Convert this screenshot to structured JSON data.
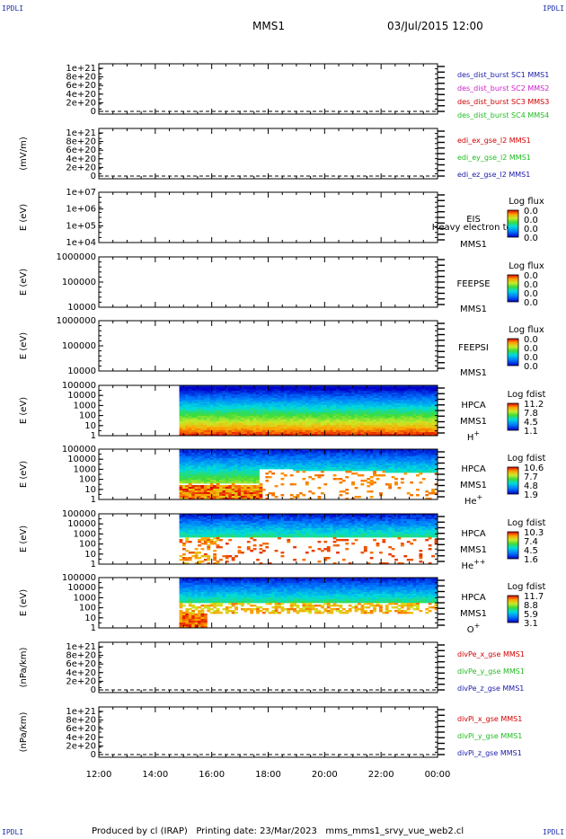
{
  "corners": {
    "tl": "IPDLI",
    "tr": "IPDLI",
    "bl": "IPDLI",
    "br": "IPDLI"
  },
  "header": {
    "spacecraft": "MMS1",
    "datetime": "03/Jul/2015 12:00"
  },
  "footer": {
    "text": "Produced by cl (IRAP)   Printing date: 23/Mar/2023   mms_mms1_srvy_vue_web2.cl"
  },
  "colors": {
    "red": "#d40000",
    "green": "#22bb22",
    "blue": "#1a1aaa",
    "magenta": "#cc22cc",
    "axis": "#000000"
  },
  "chart_data": {
    "type": "heatmap",
    "x_axis": {
      "ticks": [
        "12:00",
        "14:00",
        "16:00",
        "18:00",
        "20:00",
        "22:00",
        "00:00"
      ],
      "range_hours": [
        12,
        24
      ]
    },
    "panels": [
      {
        "kind": "line",
        "ylabel": "",
        "ticks": [
          "1e+21",
          "8e+20",
          "6e+20",
          "4e+20",
          "2e+20",
          "0"
        ],
        "legend": [
          {
            "text": "des_dist_burst SC1 MMS1",
            "color": "#1a1aaa"
          },
          {
            "text": "des_dist_burst SC2 MMS2",
            "color": "#cc22cc"
          },
          {
            "text": "des_dist_burst SC3 MMS3",
            "color": "#d40000"
          },
          {
            "text": "des_dist_burst SC4 MMS4",
            "color": "#22bb22"
          }
        ]
      },
      {
        "kind": "line",
        "ylabel": "(mV/m)",
        "ticks": [
          "1e+21",
          "8e+20",
          "6e+20",
          "4e+20",
          "2e+20",
          "0"
        ],
        "legend": [
          {
            "text": "edi_ex_gse_l2 MMS1",
            "color": "#d40000"
          },
          {
            "text": "edi_ey_gse_l2 MMS1",
            "color": "#22bb22"
          },
          {
            "text": "edi_ez_gse_l2 MMS1",
            "color": "#1a1aaa"
          }
        ]
      },
      {
        "kind": "spec",
        "ylabel": "E (eV)",
        "ticks": [
          "1e+07",
          "1e+06",
          "1e+05",
          "1e+04"
        ],
        "right_labels": [
          "EIS",
          "MMS1"
        ],
        "overlay": "Heavy electron tof",
        "cbar": {
          "title": "Log flux",
          "values": [
            "0.0",
            "0.0",
            "0.0",
            "0.0"
          ]
        },
        "coverage": null
      },
      {
        "kind": "spec",
        "ylabel": "E (eV)",
        "ticks": [
          "1000000",
          "100000",
          "10000"
        ],
        "right_labels": [
          "FEEPSE",
          "MMS1"
        ],
        "cbar": {
          "title": "Log flux",
          "values": [
            "0.0",
            "0.0",
            "0.0",
            "0.0"
          ]
        },
        "coverage": null
      },
      {
        "kind": "spec",
        "ylabel": "E (eV)",
        "ticks": [
          "1000000",
          "100000",
          "10000"
        ],
        "right_labels": [
          "FEEPSI",
          "MMS1"
        ],
        "cbar": {
          "title": "Log flux",
          "values": [
            "0.0",
            "0.0",
            "0.0",
            "0.0"
          ]
        },
        "coverage": null
      },
      {
        "kind": "spec",
        "ylabel": "E (eV)",
        "ticks": [
          "100000",
          "10000",
          "1000",
          "100",
          "10",
          "1"
        ],
        "right_labels": [
          "HPCA",
          "MMS1",
          "H+"
        ],
        "cbar": {
          "title": "Log fdist",
          "values": [
            "11.2",
            "7.8",
            "4.5",
            "1.1"
          ]
        },
        "coverage": {
          "start_hour": 14.85,
          "end_hour": 24,
          "profile": "proton"
        }
      },
      {
        "kind": "spec",
        "ylabel": "E (eV)",
        "ticks": [
          "100000",
          "10000",
          "1000",
          "100",
          "10",
          "1"
        ],
        "right_labels": [
          "HPCA",
          "MMS1",
          "He+"
        ],
        "cbar": {
          "title": "Log fdist",
          "values": [
            "10.6",
            "7.7",
            "4.8",
            "1.9"
          ]
        },
        "coverage": {
          "start_hour": 14.85,
          "end_hour": 24,
          "profile": "heplus"
        }
      },
      {
        "kind": "spec",
        "ylabel": "E (eV)",
        "ticks": [
          "100000",
          "10000",
          "1000",
          "100",
          "10",
          "1"
        ],
        "right_labels": [
          "HPCA",
          "MMS1",
          "He++"
        ],
        "cbar": {
          "title": "Log fdist",
          "values": [
            "10.3",
            "7.4",
            "4.5",
            "1.6"
          ]
        },
        "coverage": {
          "start_hour": 14.85,
          "end_hour": 24,
          "profile": "heplusplus"
        }
      },
      {
        "kind": "spec",
        "ylabel": "E (eV)",
        "ticks": [
          "100000",
          "10000",
          "1000",
          "100",
          "10",
          "1"
        ],
        "right_labels": [
          "HPCA",
          "MMS1",
          "O+"
        ],
        "cbar": {
          "title": "Log fdist",
          "values": [
            "11.7",
            "8.8",
            "5.9",
            "3.1"
          ]
        },
        "coverage": {
          "start_hour": 14.85,
          "end_hour": 24,
          "profile": "oxygen"
        }
      },
      {
        "kind": "line",
        "ylabel": "(nPa/km)",
        "ticks": [
          "1e+21",
          "8e+20",
          "6e+20",
          "4e+20",
          "2e+20",
          "0"
        ],
        "legend": [
          {
            "text": "divPe_x_gse MMS1",
            "color": "#d40000"
          },
          {
            "text": "divPe_y_gse MMS1",
            "color": "#22bb22"
          },
          {
            "text": "divPe_z_gse MMS1",
            "color": "#1a1aaa"
          }
        ]
      },
      {
        "kind": "line",
        "ylabel": "(nPa/km)",
        "ticks": [
          "1e+21",
          "8e+20",
          "6e+20",
          "4e+20",
          "2e+20",
          "0"
        ],
        "legend": [
          {
            "text": "divPi_x_gse MMS1",
            "color": "#d40000"
          },
          {
            "text": "divPi_y_gse MMS1",
            "color": "#22bb22"
          },
          {
            "text": "divPi_z_gse MMS1",
            "color": "#1a1aaa"
          }
        ]
      }
    ]
  }
}
